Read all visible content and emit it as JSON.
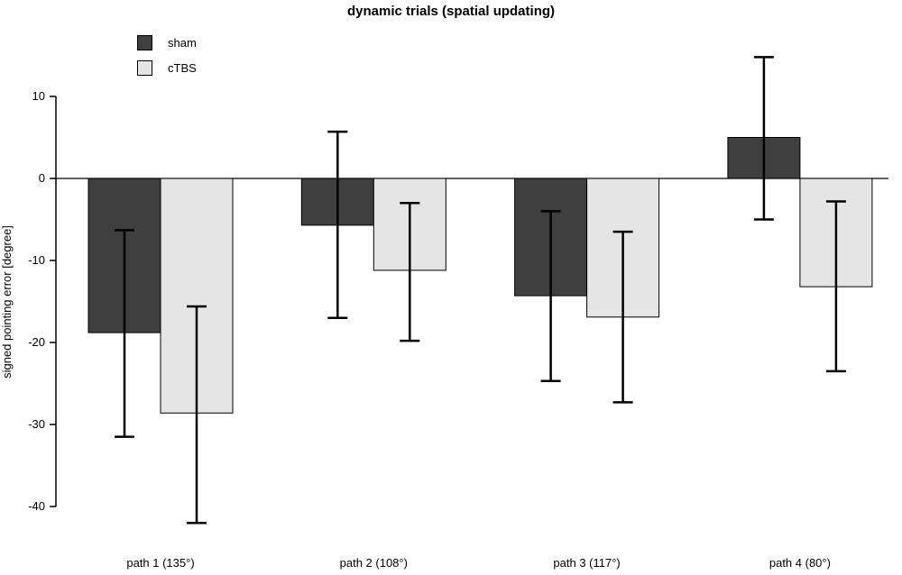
{
  "chart_data": {
    "type": "bar",
    "title": "dynamic trials (spatial updating)",
    "xlabel": "",
    "ylabel": "signed pointing error [degree]",
    "categories": [
      "path 1 (135°)",
      "path 2 (108°)",
      "path 3 (117°)",
      "path 4 (80°)"
    ],
    "series": [
      {
        "name": "sham",
        "color": "#3f3f3f",
        "values": [
          -18.8,
          -5.7,
          -14.3,
          5.0
        ],
        "error_low": [
          -31.5,
          -17.0,
          -24.7,
          -5.0
        ],
        "error_high": [
          -6.3,
          5.7,
          -4.0,
          14.8
        ]
      },
      {
        "name": "cTBS",
        "color": "#e5e5e5",
        "values": [
          -28.6,
          -11.2,
          -16.9,
          -13.2
        ],
        "error_low": [
          -42.0,
          -19.8,
          -27.3,
          -23.5
        ],
        "error_high": [
          -15.6,
          -3.0,
          -6.5,
          -2.8
        ]
      }
    ],
    "yticks": [
      10,
      0,
      -10,
      -20,
      -30,
      -40
    ],
    "ylim": [
      -44,
      16
    ],
    "legend": {
      "position": "top-left",
      "entries": [
        "sham",
        "cTBS"
      ]
    },
    "grid": false,
    "bar_border_color": "#000000",
    "error_bar_color": "#000000",
    "axis_color": "#000000",
    "background": "#ffffff"
  }
}
